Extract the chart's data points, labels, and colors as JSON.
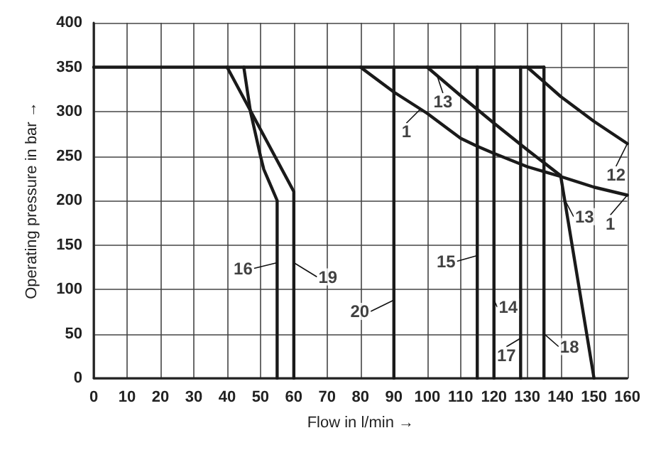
{
  "chart_data": {
    "type": "line",
    "xlabel": "Flow in l/min →",
    "ylabel": "Operating pressure in bar →",
    "xlim": [
      0,
      160
    ],
    "xticks": [
      0,
      10,
      20,
      30,
      40,
      50,
      60,
      70,
      80,
      90,
      100,
      110,
      120,
      130,
      140,
      150,
      160
    ],
    "ylim": [
      0,
      400
    ],
    "yticks": [
      0,
      50,
      100,
      150,
      200,
      250,
      300,
      350,
      400
    ],
    "grid": true,
    "marker": "none",
    "line_style": "solid",
    "series": [
      {
        "color": "#1a1a1a",
        "x": [
          0,
          135
        ],
        "values": [
          350,
          350
        ]
      },
      {
        "color": "#1a1a1a",
        "x": [
          45,
          47,
          50,
          51,
          55,
          55
        ],
        "values": [
          350,
          300,
          250,
          235,
          200,
          0
        ]
      },
      {
        "color": "#1a1a1a",
        "x": [
          40,
          60,
          60
        ],
        "values": [
          350,
          210,
          0
        ]
      },
      {
        "color": "#1a1a1a",
        "x": [
          90,
          90
        ],
        "values": [
          350,
          0
        ]
      },
      {
        "color": "#1a1a1a",
        "x": [
          80,
          90,
          100,
          110,
          115,
          120,
          130,
          140,
          150,
          160
        ],
        "values": [
          350,
          322,
          298,
          270,
          261,
          253,
          238,
          227,
          215,
          206
        ]
      },
      {
        "color": "#1a1a1a",
        "x": [
          100,
          110,
          120,
          130,
          140,
          150
        ],
        "values": [
          350,
          318,
          287,
          257,
          228,
          0
        ]
      },
      {
        "color": "#1a1a1a",
        "x": [
          130,
          140,
          150,
          160
        ],
        "values": [
          350,
          317,
          289,
          264
        ]
      },
      {
        "color": "#1a1a1a",
        "x": [
          115,
          115
        ],
        "values": [
          350,
          0
        ]
      },
      {
        "color": "#1a1a1a",
        "x": [
          120,
          120
        ],
        "values": [
          350,
          0
        ]
      },
      {
        "color": "#1a1a1a",
        "x": [
          128,
          128
        ],
        "values": [
          350,
          0
        ]
      },
      {
        "color": "#1a1a1a",
        "x": [
          135,
          135
        ],
        "values": [
          350,
          0
        ]
      }
    ],
    "annotations": [
      {
        "text": "16",
        "x": 55,
        "y": 130
      },
      {
        "text": "19",
        "x": 60,
        "y": 130
      },
      {
        "text": "20",
        "x": 90,
        "y": 88
      },
      {
        "text": "1",
        "x": 98,
        "y": 303
      },
      {
        "text": "13",
        "x": 103,
        "y": 340
      },
      {
        "text": "15",
        "x": 115,
        "y": 138
      },
      {
        "text": "14",
        "x": 120,
        "y": 88
      },
      {
        "text": "17",
        "x": 128,
        "y": 45
      },
      {
        "text": "18",
        "x": 135,
        "y": 50
      },
      {
        "text": "12",
        "x": 160,
        "y": 264
      },
      {
        "text": "13",
        "x": 141.2,
        "y": 201
      },
      {
        "text": "1",
        "x": 160,
        "y": 206
      }
    ]
  }
}
